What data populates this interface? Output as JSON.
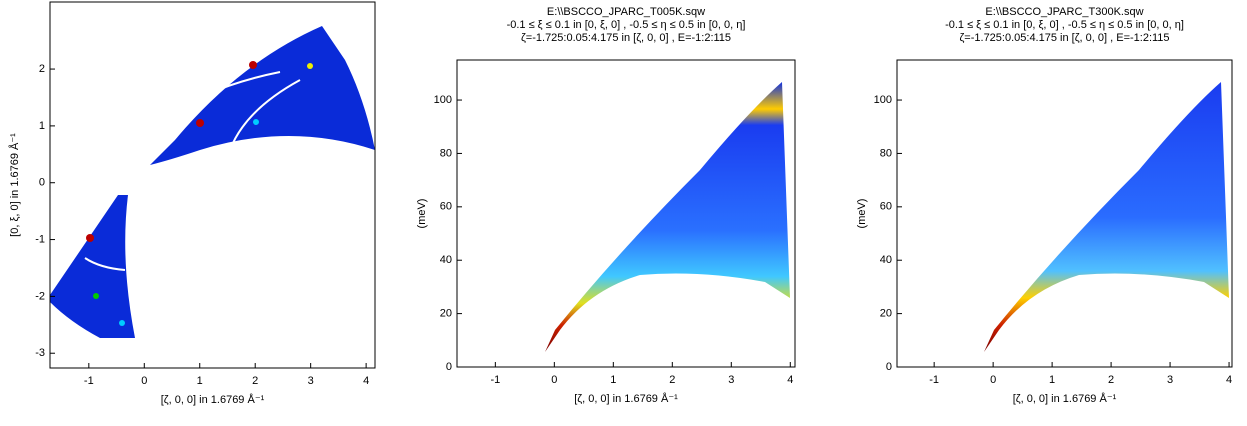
{
  "chart_data": [
    {
      "type": "heatmap",
      "xlabel": "[ζ, 0, 0] in 1.6769 Å⁻¹",
      "ylabel": "[0, ξ, 0] in 1.6769 Å⁻¹",
      "xlim": [
        -1.7,
        4.16
      ],
      "xticks": [
        -1,
        0,
        1,
        2,
        3,
        4
      ],
      "ylim": [
        -3.26,
        3.18
      ],
      "yticks": [
        -3,
        -2,
        -1,
        0,
        1,
        2
      ]
    },
    {
      "type": "heatmap",
      "title": [
        "E:\\\\BSCCO_JPARC_T005K.sqw",
        "-0.1 ≤ ξ ≤ 0.1 in [0, ξ, 0] , -0.5 ≤ η ≤ 0.5 in [0, 0, η]",
        "ζ=-1.725:0.05:4.175 in [ζ, 0, 0] , E=-1:2:115"
      ],
      "xlabel": "[ζ, 0, 0] in 1.6769 Å⁻¹",
      "ylabel": "(meV)",
      "xlim": [
        -1.65,
        4.08
      ],
      "xticks": [
        -1,
        0,
        1,
        2,
        3,
        4
      ],
      "ylim": [
        0,
        115
      ],
      "yticks": [
        0,
        20,
        40,
        60,
        80,
        100
      ]
    },
    {
      "type": "heatmap",
      "title": [
        "E:\\\\BSCCO_JPARC_T300K.sqw",
        "-0.1 ≤ ξ ≤ 0.1 in [0, ξ, 0] , -0.5 ≤ η ≤ 0.5 in [0, 0, η]",
        "ζ=-1.725:0.05:4.175 in [ζ, 0, 0] , E=-1:2:115"
      ],
      "xlabel": "[ζ, 0, 0] in 1.6769 Å⁻¹",
      "ylabel": "(meV)",
      "xlim": [
        -1.63,
        4.05
      ],
      "xticks": [
        -1,
        0,
        1,
        2,
        3,
        4
      ],
      "ylim": [
        0,
        115
      ],
      "yticks": [
        0,
        20,
        40,
        60,
        80,
        100
      ]
    }
  ]
}
